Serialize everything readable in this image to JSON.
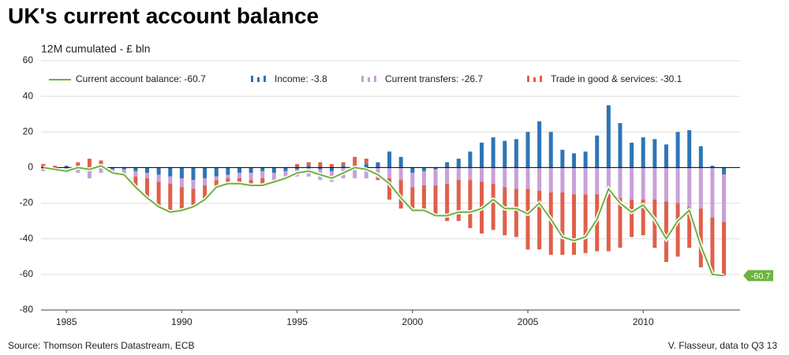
{
  "chart_data": {
    "type": "bar",
    "title": "UK's current account balance",
    "subtitle": "12M cumulated - £ bln",
    "source": "Source: Thomson Reuters Datastream, ECB",
    "credit": "V. Flasseur, data to Q3 13",
    "last_label": "-60.7",
    "stacked": true,
    "grid": true,
    "x": [
      1984.0,
      1984.5,
      1985.0,
      1985.5,
      1986.0,
      1986.5,
      1987.0,
      1987.5,
      1988.0,
      1988.5,
      1989.0,
      1989.5,
      1990.0,
      1990.5,
      1991.0,
      1991.5,
      1992.0,
      1992.5,
      1993.0,
      1993.5,
      1994.0,
      1994.5,
      1995.0,
      1995.5,
      1996.0,
      1996.5,
      1997.0,
      1997.5,
      1998.0,
      1998.5,
      1999.0,
      1999.5,
      2000.0,
      2000.5,
      2001.0,
      2001.5,
      2002.0,
      2002.5,
      2003.0,
      2003.5,
      2004.0,
      2004.5,
      2005.0,
      2005.5,
      2006.0,
      2006.5,
      2007.0,
      2007.5,
      2008.0,
      2008.5,
      2009.0,
      2009.5,
      2010.0,
      2010.5,
      2011.0,
      2011.5,
      2012.0,
      2012.5,
      2013.0,
      2013.5
    ],
    "series": [
      {
        "name": "Income: -3.8",
        "color": "#2e75b6",
        "values": [
          0,
          0,
          1,
          1,
          -2,
          1,
          -1,
          -1,
          -2,
          -3,
          -4,
          -5,
          -6,
          -7,
          -6,
          -5,
          -4,
          -3,
          -3,
          -2,
          -3,
          -2,
          -1,
          1,
          -1,
          -2,
          1,
          1,
          2,
          3,
          9,
          6,
          -3,
          -2,
          -1,
          3,
          5,
          9,
          14,
          17,
          15,
          16,
          20,
          26,
          20,
          10,
          8,
          9,
          18,
          35,
          25,
          14,
          17,
          16,
          13,
          20,
          21,
          12,
          1,
          -3.8
        ]
      },
      {
        "name": "Current transfers: -26.7",
        "color": "#c9a0d8",
        "values": [
          -2,
          -2,
          -2,
          -3,
          -4,
          -3,
          -2,
          -2,
          -3,
          -3,
          -4,
          -4,
          -5,
          -5,
          -4,
          -2,
          -2,
          -3,
          -4,
          -4,
          -4,
          -4,
          -4,
          -5,
          -6,
          -6,
          -6,
          -6,
          -6,
          -6,
          -6,
          -7,
          -8,
          -8,
          -9,
          -9,
          -7,
          -7,
          -8,
          -9,
          -11,
          -12,
          -12,
          -13,
          -14,
          -14,
          -15,
          -15,
          -15,
          -15,
          -17,
          -18,
          -18,
          -18,
          -19,
          -20,
          -22,
          -23,
          -28,
          -26.7
        ]
      },
      {
        "name": "Trade in good & services: -30.1",
        "color": "#e0604a",
        "values": [
          2,
          1,
          -1,
          2,
          5,
          3,
          0,
          -1,
          -6,
          -11,
          -14,
          -16,
          -13,
          -10,
          -8,
          -4,
          -3,
          -3,
          -3,
          -4,
          -1,
          0,
          2,
          2,
          3,
          2,
          2,
          5,
          3,
          -1,
          -12,
          -16,
          -13,
          -14,
          -17,
          -21,
          -23,
          -27,
          -29,
          -26,
          -27,
          -27,
          -34,
          -33,
          -35,
          -35,
          -34,
          -33,
          -32,
          -32,
          -28,
          -21,
          -20,
          -27,
          -34,
          -30,
          -23,
          -33,
          -33,
          -30.1
        ]
      },
      {
        "name": "Current account balance: -60.7",
        "color": "#6db33f",
        "type": "line",
        "values": [
          0,
          -1,
          -2,
          0,
          -1,
          1,
          -3,
          -4,
          -11,
          -17,
          -22,
          -25,
          -24,
          -22,
          -18,
          -11,
          -9,
          -9,
          -10,
          -10,
          -8,
          -6,
          -3,
          -2,
          -4,
          -6,
          -3,
          0,
          -1,
          -4,
          -9,
          -17,
          -24,
          -24,
          -27,
          -27,
          -25,
          -25,
          -23,
          -18,
          -23,
          -23,
          -26,
          -20,
          -29,
          -39,
          -41,
          -39,
          -29,
          -12,
          -20,
          -25,
          -21,
          -29,
          -40,
          -30,
          -24,
          -44,
          -60,
          -60.7
        ]
      }
    ],
    "xlim": [
      1983.9,
      2014.2
    ],
    "xticks": [
      1985,
      1990,
      1995,
      2000,
      2005,
      2010
    ],
    "ylim": [
      -80,
      60
    ],
    "yticks": [
      -80,
      -60,
      -40,
      -20,
      0,
      20,
      40,
      60
    ]
  }
}
